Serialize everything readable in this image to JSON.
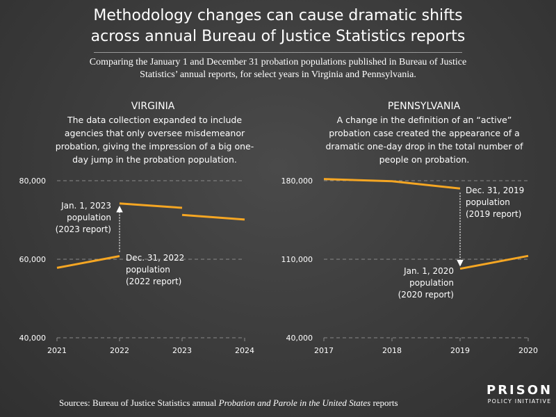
{
  "title": {
    "line1": "Methodology changes can cause dramatic shifts",
    "line2": "across annual Bureau of Justice Statistics reports"
  },
  "subtitle": "Comparing the January 1 and December 31 probation populations published in Bureau of Justice Statistics’ annual reports, for select years in Virginia and Pennsylvania.",
  "source": {
    "prefix": "Sources: Bureau of Justice Statistics annual ",
    "italic": "Probation and Parole in the United States",
    "suffix": " reports"
  },
  "logo": {
    "line1": "PRISON",
    "line2": "POLICY INITIATIVE"
  },
  "colors": {
    "line": "#f5a623",
    "background": "#3c3c3c",
    "text": "#ffffff"
  },
  "panels": [
    {
      "title": "VIRGINIA",
      "description": "The data collection expanded to include agencies that only oversee misdemeanor probation, giving the impression of a big one-day jump in the probation population.",
      "annotations": {
        "jan": [
          "Jan. 1, 2023",
          "population",
          "(2023 report)"
        ],
        "dec": [
          "Dec. 31, 2022",
          "population",
          "(2022 report)"
        ]
      }
    },
    {
      "title": "PENNSYLVANIA",
      "description": "A change in the definition of an “active” probation case created the appearance of a dramatic one-day drop in the total number of people on probation.",
      "annotations": {
        "dec": [
          "Dec. 31, 2019",
          "population",
          "(2019 report)"
        ],
        "jan": [
          "Jan. 1, 2020",
          "population",
          "(2020 report)"
        ]
      }
    }
  ],
  "chart_data": [
    {
      "type": "line",
      "title": "VIRGINIA",
      "x_ticks": [
        "2021",
        "2022",
        "2023",
        "2024"
      ],
      "xlim": [
        2021,
        2024
      ],
      "y_ticks": [
        "40,000",
        "60,000",
        "80,000"
      ],
      "ylim": [
        40000,
        80000
      ],
      "grid": "horizontal dashed",
      "series": [
        {
          "values": [
            [
              2021,
              57800
            ],
            [
              2022,
              60800
            ]
          ]
        },
        {
          "values": [
            [
              2022,
              74200
            ],
            [
              2023,
              73100
            ]
          ]
        },
        {
          "values": [
            [
              2023,
              71300
            ],
            [
              2024,
              70100
            ]
          ]
        }
      ],
      "arrow": {
        "x": 2022,
        "from": 60800,
        "to": 74200
      }
    },
    {
      "type": "line",
      "title": "PENNSYLVANIA",
      "x_ticks": [
        "2017",
        "2018",
        "2019",
        "2020"
      ],
      "xlim": [
        2017,
        2020
      ],
      "y_ticks": [
        "40,000",
        "110,000",
        "180,000"
      ],
      "ylim": [
        40000,
        180000
      ],
      "grid": "horizontal dashed",
      "series": [
        {
          "values": [
            [
              2017,
              181500
            ],
            [
              2018,
              179500
            ],
            [
              2019,
              173000
            ]
          ]
        },
        {
          "values": [
            [
              2019,
              101500
            ],
            [
              2020,
              113000
            ]
          ]
        }
      ],
      "arrow": {
        "x": 2019,
        "from": 173000,
        "to": 101500
      }
    }
  ]
}
